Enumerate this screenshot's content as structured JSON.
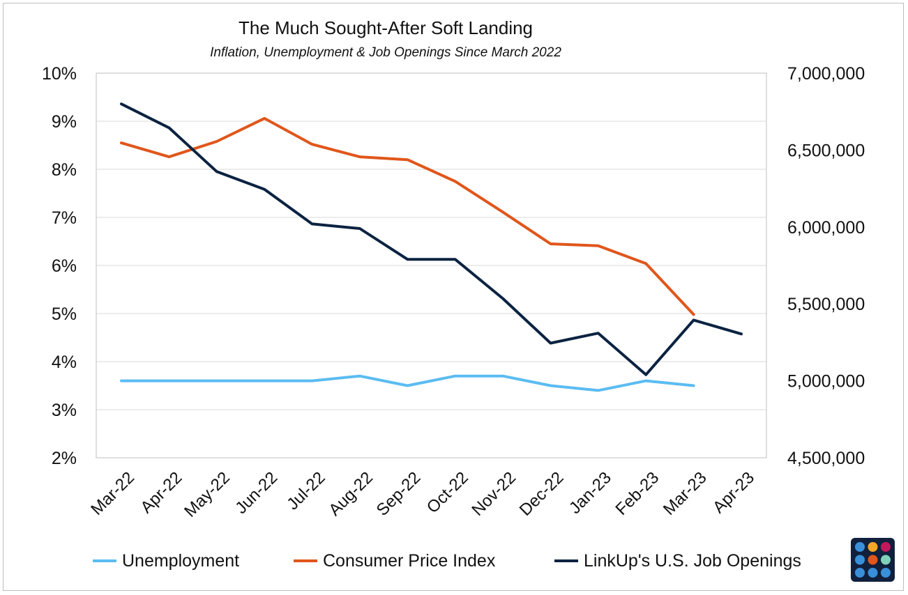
{
  "chart_data": {
    "type": "line",
    "title": "The Much Sought-After Soft Landing",
    "subtitle": "Inflation, Unemployment & Job Openings Since March 2022",
    "categories": [
      "Mar-22",
      "Apr-22",
      "May-22",
      "Jun-22",
      "Jul-22",
      "Aug-22",
      "Sep-22",
      "Oct-22",
      "Nov-22",
      "Dec-22",
      "Jan-23",
      "Feb-23",
      "Mar-23",
      "Apr-23"
    ],
    "y_left": {
      "ylim": [
        0.02,
        0.1
      ],
      "ticks": [
        0.02,
        0.03,
        0.04,
        0.05,
        0.06,
        0.07,
        0.08,
        0.09,
        0.1
      ],
      "tick_labels": [
        "2%",
        "3%",
        "4%",
        "5%",
        "6%",
        "7%",
        "8%",
        "9%",
        "10%"
      ]
    },
    "y_right": {
      "ylim": [
        4500000,
        7000000
      ],
      "ticks": [
        4500000,
        5000000,
        5500000,
        6000000,
        6500000,
        7000000
      ],
      "tick_labels": [
        "4,500,000",
        "5,000,000",
        "5,500,000",
        "6,000,000",
        "6,500,000",
        "7,000,000"
      ]
    },
    "grid": true,
    "legend_position": "bottom",
    "series": [
      {
        "name": "Unemployment",
        "axis": "left",
        "color": "#5bbcf2",
        "values": [
          0.036,
          0.036,
          0.036,
          0.036,
          0.036,
          0.037,
          0.035,
          0.037,
          0.037,
          0.035,
          0.034,
          0.036,
          0.035,
          null
        ]
      },
      {
        "name": "Consumer Price Index",
        "axis": "left",
        "color": "#e0561b",
        "values": [
          0.0855,
          0.0826,
          0.0858,
          0.0906,
          0.0852,
          0.0826,
          0.082,
          0.0775,
          0.0711,
          0.0645,
          0.0641,
          0.0604,
          0.0498,
          null
        ]
      },
      {
        "name": "LinkUp's U.S. Job Openings",
        "axis": "right",
        "color": "#0b2341",
        "values": [
          6800000,
          6645000,
          6360000,
          6245000,
          6020000,
          5990000,
          5790000,
          5790000,
          5535000,
          5245000,
          5310000,
          5040000,
          5395000,
          5305000
        ]
      }
    ]
  },
  "logo": {
    "icon": "dot-grid-logo-icon",
    "colors": [
      "#3a8fd9",
      "#f5a623",
      "#c2185b",
      "#3a8fd9",
      "#e0561b",
      "#7fd1b9",
      "#3a8fd9",
      "#3a8fd9",
      "#3a8fd9"
    ]
  }
}
